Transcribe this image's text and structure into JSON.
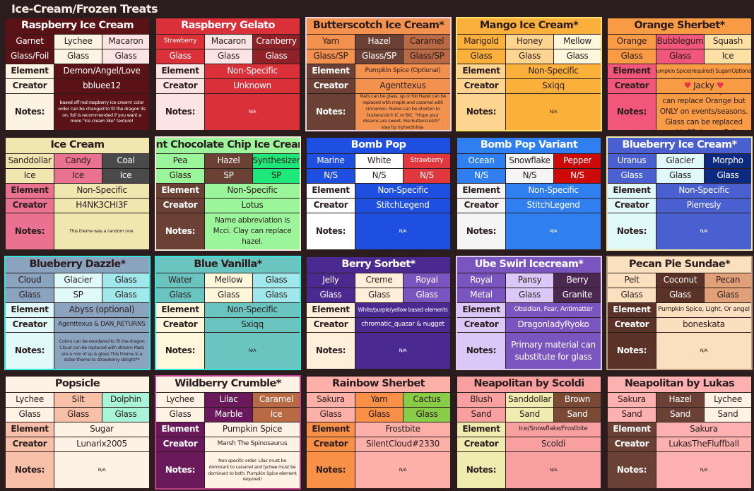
{
  "page_title": "Ice-Cream/Frozen Treats",
  "labels": {
    "element": "Element",
    "creator": "Creator",
    "notes": "Notes:"
  },
  "cards": [
    {
      "title": "Raspberry Ice Cream",
      "title_bg": "#5a1216",
      "title_fg": "#ffffff",
      "border": "",
      "cells": [
        {
          "name": "Garnet",
          "mat": "Glass/Foil",
          "bg": "#5a1216",
          "fg": "#ffffff"
        },
        {
          "name": "Lychee",
          "mat": "Glass",
          "bg": "#fdf3e3",
          "fg": "#2b1d1e"
        },
        {
          "name": "Macaron",
          "mat": "Glass",
          "bg": "#fde4e4",
          "fg": "#2b1d1e"
        }
      ],
      "label_bg": "#fdf3e3",
      "label_fg": "#2b1d1e",
      "value_bg": "#5a1216",
      "value_fg": "#ffffff",
      "element": "Demon/Angel/Love",
      "creator": "bbluee12",
      "notes": "based off red raspberry ice cream! color order can be changed to fit the dragon its on, foil is recommended if you want a more \"ice cream like\" texture!",
      "notes_size": "xs"
    },
    {
      "title": "Raspberry Gelato",
      "title_bg": "#d9303a",
      "title_fg": "#ffffff",
      "border": "",
      "cells": [
        {
          "name": "Strawberry",
          "mat": "Glass",
          "bg": "#d9303a",
          "fg": "#ffffff",
          "small": true
        },
        {
          "name": "Macaron",
          "mat": "Glass",
          "bg": "#fde4e4",
          "fg": "#2b1d1e"
        },
        {
          "name": "Cranberry",
          "mat": "Glass",
          "bg": "#8e2228",
          "fg": "#ffffff"
        }
      ],
      "label_bg": "#fde4e4",
      "label_fg": "#2b1d1e",
      "value_bg": "#d9303a",
      "value_fg": "#ffffff",
      "element": "Non-Specific",
      "creator": "Unknown",
      "notes": "N/A",
      "notes_size": "xs"
    },
    {
      "title": "Butterscotch Ice Cream*",
      "title_bg": "#f3924e",
      "title_fg": "#2b1d1e",
      "border": "#e8d5e0",
      "cells": [
        {
          "name": "Yam",
          "mat": "Glass/SP",
          "bg": "#f3924e",
          "fg": "#2b1d1e"
        },
        {
          "name": "Hazel",
          "mat": "Glass/SP",
          "bg": "#6b4136",
          "fg": "#ffffff"
        },
        {
          "name": "Caramel",
          "mat": "Glass/SP",
          "bg": "#b86a45",
          "fg": "#2b1d1e"
        }
      ],
      "label_bg": "#6b4136",
      "label_fg": "#ffffff",
      "value_bg": "#f3924e",
      "value_fg": "#2b1d1e",
      "element": "Pumpkin Spice (Optional)",
      "element_size": "sm",
      "creator": "Agenttexus",
      "notes": "Mats can be glass, sp or foil Hazel can be replaced with maple and caramel with cinnamon. Name can be shorten to butterscotch IC or BIC. \"Hope your dreams are sweet, like butterscotch\" - stay by tryhardninja.",
      "notes_size": "xs"
    },
    {
      "title": "Mango Ice Cream*",
      "title_bg": "#fbb03b",
      "title_fg": "#2b1d1e",
      "border": "#fbe26a",
      "cells": [
        {
          "name": "Marigold",
          "mat": "Glass",
          "bg": "#fbb03b",
          "fg": "#2b1d1e"
        },
        {
          "name": "Honey",
          "mat": "Glass",
          "bg": "#fdd591",
          "fg": "#2b1d1e"
        },
        {
          "name": "Mellow",
          "mat": "Glass",
          "bg": "#fff7dc",
          "fg": "#2b1d1e"
        }
      ],
      "label_bg": "#fdd591",
      "label_fg": "#2b1d1e",
      "value_bg": "#fbb03b",
      "value_fg": "#2b1d1e",
      "element": "Non-Specific",
      "creator": "Sxiqq",
      "notes": "N/A",
      "notes_size": "xs"
    },
    {
      "title": "Orange Sherbet*",
      "title_bg": "#f99a44",
      "title_fg": "#2b1d1e",
      "border": "",
      "cells": [
        {
          "name": "Orange",
          "mat": "Glass",
          "bg": "#f99a44",
          "fg": "#2b1d1e"
        },
        {
          "name": "Bubblegum",
          "mat": "Glass",
          "bg": "#f0577a",
          "fg": "#2b1d1e"
        },
        {
          "name": "Squash",
          "mat": "Ice",
          "bg": "#fde1a4",
          "fg": "#2b1d1e"
        }
      ],
      "label_bg": "#f0577a",
      "label_fg": "#2b1d1e",
      "value_bg": "#f99a44",
      "value_fg": "#2b1d1e",
      "element": "Pumpkin Spice(required) Sugar(Optional)",
      "element_size": "xs",
      "creator": "Jacky",
      "creator_hearts": true,
      "notes": "Ice is mandatory! Yam can replace Orange but ONLY on events/seasons. Glass can be replaced with SP, Ice, or Foil.",
      "notes_size": "md"
    },
    {
      "title": "Ice Cream",
      "title_bg": "#efe6b0",
      "title_fg": "#2b1d1e",
      "border": "",
      "cells": [
        {
          "name": "Sanddollar",
          "mat": "Ice",
          "bg": "#efe6b0",
          "fg": "#2b1d1e"
        },
        {
          "name": "Candy",
          "mat": "Ice",
          "bg": "#e8728f",
          "fg": "#2b1d1e"
        },
        {
          "name": "Coal",
          "mat": "Ice",
          "bg": "#4a4a4a",
          "fg": "#ffffff"
        }
      ],
      "label_bg": "#e8728f",
      "label_fg": "#2b1d1e",
      "value_bg": "#efe6b0",
      "value_fg": "#2b1d1e",
      "element": "Non-Specific",
      "creator": "H4NK3CHI3F",
      "notes": "This theme was a random one.",
      "notes_size": "xs"
    },
    {
      "title": "Mint Chocolate Chip Ice Cream*",
      "title_bg": "#9bf59b",
      "title_fg": "#2b1d1e",
      "border": "#f5e7d9",
      "cells": [
        {
          "name": "Pea",
          "mat": "Glass",
          "bg": "#9bf59b",
          "fg": "#2b1d1e"
        },
        {
          "name": "Hazel",
          "mat": "SP",
          "bg": "#6b4136",
          "fg": "#ffffff"
        },
        {
          "name": "Synthesizer",
          "mat": "SP",
          "bg": "#1ee87a",
          "fg": "#2b1d1e"
        }
      ],
      "label_bg": "#6b4136",
      "label_fg": "#ffffff",
      "value_bg": "#9bf59b",
      "value_fg": "#2b1d1e",
      "element": "Non-Specific",
      "creator": "Lotus",
      "notes": "Name abbreviation is Mcci. Clay can replace hazel.",
      "notes_size": "md"
    },
    {
      "title": "Bomb Pop",
      "title_bg": "#1f4fe0",
      "title_fg": "#ffffff",
      "border": "",
      "cells": [
        {
          "name": "Marine",
          "mat": "N/S",
          "bg": "#1f4fe0",
          "fg": "#ffffff"
        },
        {
          "name": "White",
          "mat": "N/S",
          "bg": "#ffffff",
          "fg": "#2b1d1e"
        },
        {
          "name": "Strawberry",
          "mat": "N/S",
          "bg": "#e0383e",
          "fg": "#ffffff",
          "small": true
        }
      ],
      "label_bg": "#ffffff",
      "label_fg": "#2b1d1e",
      "value_bg": "#1f4fe0",
      "value_fg": "#ffffff",
      "element": "Non-Specific",
      "creator": "StitchLegend",
      "notes": "N/A",
      "notes_size": "xs"
    },
    {
      "title": "Bomb Pop Variant",
      "title_bg": "#2f7ff0",
      "title_fg": "#ffffff",
      "border": "",
      "cells": [
        {
          "name": "Ocean",
          "mat": "N/S",
          "bg": "#2f7ff0",
          "fg": "#ffffff"
        },
        {
          "name": "Snowflake",
          "mat": "N/S",
          "bg": "#f5f5f5",
          "fg": "#2b1d1e"
        },
        {
          "name": "Pepper",
          "mat": "N/S",
          "bg": "#cc0a0a",
          "fg": "#ffffff"
        }
      ],
      "label_bg": "#f5f5f5",
      "label_fg": "#2b1d1e",
      "value_bg": "#2f7ff0",
      "value_fg": "#ffffff",
      "element": "Non-Specific",
      "creator": "StitchLegend",
      "notes": "N/A",
      "notes_size": "xs"
    },
    {
      "title": "Blueberry Ice Cream*",
      "title_bg": "#4a5fd0",
      "title_fg": "#ffffff",
      "border": "#f5e7b0",
      "cells": [
        {
          "name": "Uranus",
          "mat": "Glass",
          "bg": "#4a5fd0",
          "fg": "#ffffff"
        },
        {
          "name": "Glacier",
          "mat": "Glass",
          "bg": "#e0fafa",
          "fg": "#2b1d1e"
        },
        {
          "name": "Morpho",
          "mat": "Glass",
          "bg": "#0c2a80",
          "fg": "#ffffff"
        }
      ],
      "label_bg": "#e0fafa",
      "label_fg": "#2b1d1e",
      "value_bg": "#4a5fd0",
      "value_fg": "#ffffff",
      "element": "Non-Specific",
      "creator": "Pierresly",
      "notes": "N/A",
      "notes_size": "xs"
    },
    {
      "title": "Blueberry Dazzle*",
      "title_bg": "#8aa4c0",
      "title_fg": "#2b1d1e",
      "border": "#2ee8e0",
      "cells": [
        {
          "name": "Cloud",
          "mat": "Glass",
          "bg": "#8aa4c0",
          "fg": "#2b1d1e"
        },
        {
          "name": "Glacier",
          "mat": "SP",
          "bg": "#e0fafa",
          "fg": "#2b1d1e"
        },
        {
          "name": "Glass",
          "mat": "Glass",
          "bg": "#a0e8ec",
          "fg": "#2b1d1e"
        }
      ],
      "label_bg": "#e0fafa",
      "label_fg": "#2b1d1e",
      "value_bg": "#8aa4c0",
      "value_fg": "#2b1d1e",
      "element": "Abyss (optional)",
      "creator": "Agenttexus & DAN_RETURNS",
      "creator_size": "sm",
      "notes": "Colors can be reordered to fit the dragon Cloud can be replaced with stream Mats are a mix of sp & glass This theme is a sister theme to strawberry delight**",
      "notes_size": "xs"
    },
    {
      "title": "Blue Vanilla*",
      "title_bg": "#6ac4c0",
      "title_fg": "#2b1d1e",
      "border": "#2ee8e0",
      "cells": [
        {
          "name": "Water",
          "mat": "Glass",
          "bg": "#6ac4c0",
          "fg": "#2b1d1e"
        },
        {
          "name": "Mellow",
          "mat": "Glass",
          "bg": "#fff7dc",
          "fg": "#2b1d1e"
        },
        {
          "name": "Glass",
          "mat": "Glass",
          "bg": "#a0e8ec",
          "fg": "#2b1d1e"
        }
      ],
      "label_bg": "#fff7dc",
      "label_fg": "#2b1d1e",
      "value_bg": "#6ac4c0",
      "value_fg": "#2b1d1e",
      "element": "Non-Specific",
      "creator": "Sxiqq",
      "notes": "N/A",
      "notes_size": "xs"
    },
    {
      "title": "Berry Sorbet*",
      "title_bg": "#4a2a90",
      "title_fg": "#ffffff",
      "border": "",
      "cells": [
        {
          "name": "Jelly",
          "mat": "Glass",
          "bg": "#4a2a90",
          "fg": "#ffffff"
        },
        {
          "name": "Creme",
          "mat": "Glass",
          "bg": "#fdefd9",
          "fg": "#2b1d1e"
        },
        {
          "name": "Royal",
          "mat": "Glass",
          "bg": "#7a55c0",
          "fg": "#ffffff"
        }
      ],
      "label_bg": "#fdefd9",
      "label_fg": "#2b1d1e",
      "value_bg": "#4a2a90",
      "value_fg": "#ffffff",
      "element": "White/purple/yellow based elements",
      "element_size": "xs",
      "creator": "chromatic_quasar & nugget",
      "creator_size": "sm",
      "notes": "N/A",
      "notes_size": "xs"
    },
    {
      "title": "Ube Swirl Icecream*",
      "title_bg": "#7a55c0",
      "title_fg": "#ffffff",
      "border": "#e0d0f0",
      "cells": [
        {
          "name": "Royal",
          "mat": "Metal",
          "bg": "#7a55c0",
          "fg": "#ffffff"
        },
        {
          "name": "Pansy",
          "mat": "Glass",
          "bg": "#dcc8f8",
          "fg": "#2b1d1e"
        },
        {
          "name": "Berry",
          "mat": "Granite",
          "bg": "#4a2850",
          "fg": "#ffffff"
        }
      ],
      "label_bg": "#dcc8f8",
      "label_fg": "#2b1d1e",
      "value_bg": "#7a55c0",
      "value_fg": "#ffffff",
      "element": "Obsidian, Fear, Antimatter",
      "element_size": "sm",
      "creator": "DragonladyRyoko",
      "notes": "Primary material can substitute for glass",
      "notes_size": "lg"
    },
    {
      "title": "Pecan Pie Sundae*",
      "title_bg": "#fbe0c0",
      "title_fg": "#2b1d1e",
      "border": "#c0a080",
      "cells": [
        {
          "name": "Pelt",
          "mat": "Glass",
          "bg": "#fbe0c0",
          "fg": "#2b1d1e"
        },
        {
          "name": "Coconut",
          "mat": "Glass",
          "bg": "#5a3228",
          "fg": "#ffffff"
        },
        {
          "name": "Pecan",
          "mat": "Glass",
          "bg": "#e0a078",
          "fg": "#2b1d1e"
        }
      ],
      "label_bg": "#5a3228",
      "label_fg": "#ffffff",
      "value_bg": "#fbe0c0",
      "value_fg": "#2b1d1e",
      "element": "Pumpkin Spice, Light, Or angel",
      "element_size": "sm",
      "creator": "boneskata",
      "notes": "N/A",
      "notes_size": "xs"
    },
    {
      "title": "Popsicle",
      "title_bg": "#fef2e4",
      "title_fg": "#2b1d1e",
      "border": "",
      "cells": [
        {
          "name": "Lychee",
          "mat": "Glass",
          "bg": "#fef2e4",
          "fg": "#2b1d1e"
        },
        {
          "name": "Silt",
          "mat": "Glass",
          "bg": "#f8c0a8",
          "fg": "#2b1d1e"
        },
        {
          "name": "Dolphin",
          "mat": "Glass",
          "bg": "#a8f4d8",
          "fg": "#2b1d1e"
        }
      ],
      "label_bg": "#f8c0a8",
      "label_fg": "#2b1d1e",
      "value_bg": "#fef2e4",
      "value_fg": "#2b1d1e",
      "element": "Sugar",
      "creator": "Lunarix2005",
      "notes": "N/A",
      "notes_size": "xs"
    },
    {
      "title": "Wildberry Crumble*",
      "title_bg": "#fef2e4",
      "title_fg": "#2b1d1e",
      "border": "#c04090",
      "cells": [
        {
          "name": "Lychee",
          "mat": "Glass",
          "bg": "#fef2e4",
          "fg": "#2b1d1e"
        },
        {
          "name": "Lilac",
          "mat": "Marble",
          "bg": "#6a1a5a",
          "fg": "#ffffff"
        },
        {
          "name": "Caramel",
          "mat": "Ice",
          "bg": "#b86a45",
          "fg": "#ffffff"
        }
      ],
      "label_bg": "#6a1a5a",
      "label_fg": "#ffffff",
      "value_bg": "#fef2e4",
      "value_fg": "#2b1d1e",
      "element": "Pumpkin Spice",
      "creator": "Marsh The Spinosaurus",
      "creator_size": "sm",
      "notes": "Non specific order. Lilac must be dominant to caramel and lychee must be dominant to both. Pumpkin Spice element required!",
      "notes_size": "xs"
    },
    {
      "title": "Rainbow Sherbet",
      "title_bg": "#fdb0a8",
      "title_fg": "#2b1d1e",
      "border": "",
      "cells": [
        {
          "name": "Sakura",
          "mat": "Glass",
          "bg": "#fdb0a8",
          "fg": "#2b1d1e"
        },
        {
          "name": "Yam",
          "mat": "Glass",
          "bg": "#f89048",
          "fg": "#2b1d1e"
        },
        {
          "name": "Cactus",
          "mat": "Glass",
          "bg": "#88cc48",
          "fg": "#2b1d1e"
        }
      ],
      "label_bg": "#f89048",
      "label_fg": "#2b1d1e",
      "value_bg": "#fdb0a8",
      "value_fg": "#2b1d1e",
      "element": "Frostbite",
      "creator": "SilentCloud#2330",
      "notes": "N/A",
      "notes_size": "xs"
    },
    {
      "title": "Neapolitan by Scoldi",
      "title_bg": "#f8a0a0",
      "title_fg": "#2b1d1e",
      "border": "",
      "cells": [
        {
          "name": "Blush",
          "mat": "Sand",
          "bg": "#f8a0a0",
          "fg": "#2b1d1e"
        },
        {
          "name": "Sanddollar",
          "mat": "Sand",
          "bg": "#f0ecb0",
          "fg": "#2b1d1e"
        },
        {
          "name": "Brown",
          "mat": "Sand",
          "bg": "#7a4a34",
          "fg": "#ffffff"
        }
      ],
      "label_bg": "#f0ecb0",
      "label_fg": "#2b1d1e",
      "value_bg": "#f8a0a0",
      "value_fg": "#2b1d1e",
      "element": "Ice/Snowflake/Frostbite",
      "element_size": "sm",
      "creator": "Scoldi",
      "notes": "N/A",
      "notes_size": "xs"
    },
    {
      "title": "Neapolitan by Lukas",
      "title_bg": "#fdb0b0",
      "title_fg": "#2b1d1e",
      "border": "",
      "cells": [
        {
          "name": "Sakura",
          "mat": "Sand",
          "bg": "#fdb0b0",
          "fg": "#2b1d1e"
        },
        {
          "name": "Hazel",
          "mat": "Sand",
          "bg": "#6b4136",
          "fg": "#ffffff"
        },
        {
          "name": "Lychee",
          "mat": "Sand",
          "bg": "#fef2e4",
          "fg": "#2b1d1e"
        }
      ],
      "label_bg": "#6b4136",
      "label_fg": "#ffffff",
      "value_bg": "#fdb0b0",
      "value_fg": "#2b1d1e",
      "element": "Sakura",
      "creator": "LukasTheFluffball",
      "notes": "N/A",
      "notes_size": "xs"
    }
  ]
}
